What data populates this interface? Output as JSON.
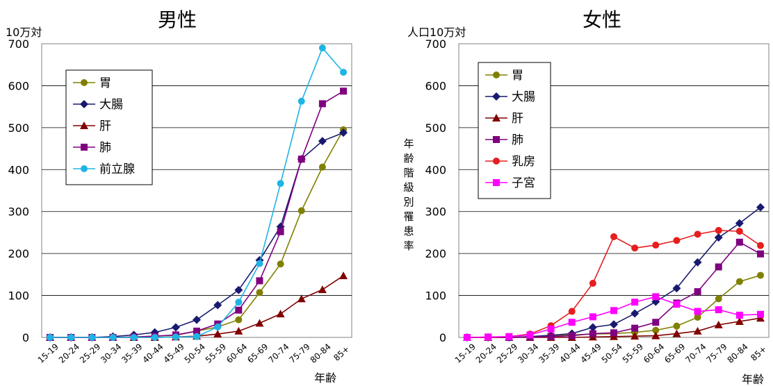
{
  "chart_data": [
    {
      "type": "line",
      "title": "男性",
      "ylabel": "10万対",
      "xlabel": "年齢",
      "ylim": [
        0,
        700
      ],
      "yticks": [
        0,
        100,
        200,
        300,
        400,
        500,
        600,
        700
      ],
      "grid": true,
      "legend": "upper-left",
      "categories": [
        "15-19",
        "20-24",
        "25-29",
        "30-34",
        "35-39",
        "40-44",
        "45-49",
        "50-54",
        "55-59",
        "60-64",
        "65-69",
        "70-74",
        "75-79",
        "80-84",
        "85+"
      ],
      "series": [
        {
          "name": "胃",
          "color": "#808000",
          "marker": "circle",
          "values": [
            0,
            0,
            0,
            0,
            1,
            3,
            5,
            15,
            25,
            42,
            107,
            175,
            302,
            406,
            495
          ]
        },
        {
          "name": "大腸",
          "color": "#191970",
          "marker": "diamond",
          "values": [
            0,
            0,
            0,
            2,
            6,
            12,
            24,
            42,
            77,
            113,
            184,
            264,
            425,
            468,
            488
          ]
        },
        {
          "name": "肝",
          "color": "#800000",
          "marker": "triangle",
          "values": [
            0,
            0,
            0,
            0,
            0,
            0,
            1,
            3,
            8,
            15,
            34,
            56,
            92,
            114,
            147
          ]
        },
        {
          "name": "肺",
          "color": "#800080",
          "marker": "square",
          "values": [
            0,
            0,
            0,
            0,
            1,
            3,
            6,
            15,
            32,
            65,
            135,
            252,
            425,
            557,
            587
          ]
        },
        {
          "name": "前立腺",
          "color": "#1EB4E6",
          "marker": "circle",
          "values": [
            0,
            0,
            0,
            0,
            0,
            0,
            1,
            2,
            25,
            84,
            176,
            367,
            563,
            690,
            632
          ]
        }
      ]
    },
    {
      "type": "line",
      "title": "女性",
      "ylabel": "人口10万対",
      "ylabel_vertical": "年齢階級別罹患率",
      "xlabel": "年齢",
      "ylim": [
        0,
        700
      ],
      "yticks": [
        0,
        100,
        200,
        300,
        400,
        500,
        600,
        700
      ],
      "grid": true,
      "legend": "upper-left",
      "categories": [
        "15-19",
        "20-24",
        "25-29",
        "30-34",
        "35-39",
        "40-44",
        "45-49",
        "50-54",
        "55-59",
        "60-64",
        "65-69",
        "70-74",
        "75-79",
        "80-84",
        "85+"
      ],
      "series": [
        {
          "name": "胃",
          "color": "#808000",
          "marker": "circle",
          "values": [
            0,
            0,
            0,
            1,
            3,
            6,
            8,
            9,
            12,
            17,
            27,
            48,
            92,
            133,
            148
          ]
        },
        {
          "name": "大腸",
          "color": "#191970",
          "marker": "diamond",
          "values": [
            0,
            0,
            0,
            2,
            5,
            9,
            24,
            31,
            57,
            85,
            117,
            179,
            238,
            272,
            310
          ]
        },
        {
          "name": "肝",
          "color": "#800000",
          "marker": "triangle",
          "values": [
            0,
            0,
            0,
            0,
            0,
            0,
            1,
            2,
            3,
            4,
            9,
            15,
            30,
            38,
            46
          ]
        },
        {
          "name": "肺",
          "color": "#800080",
          "marker": "square",
          "values": [
            0,
            0,
            0,
            1,
            2,
            4,
            9,
            11,
            22,
            36,
            82,
            109,
            168,
            227,
            199
          ]
        },
        {
          "name": "乳房",
          "color": "#E61E1E",
          "marker": "circle",
          "values": [
            0,
            0,
            2,
            8,
            28,
            62,
            129,
            240,
            213,
            220,
            231,
            246,
            255,
            253,
            219
          ]
        },
        {
          "name": "子宮",
          "color": "#FF00FF",
          "marker": "square",
          "values": [
            0,
            1,
            2,
            6,
            20,
            36,
            49,
            64,
            84,
            97,
            79,
            62,
            66,
            53,
            55
          ]
        }
      ]
    }
  ]
}
